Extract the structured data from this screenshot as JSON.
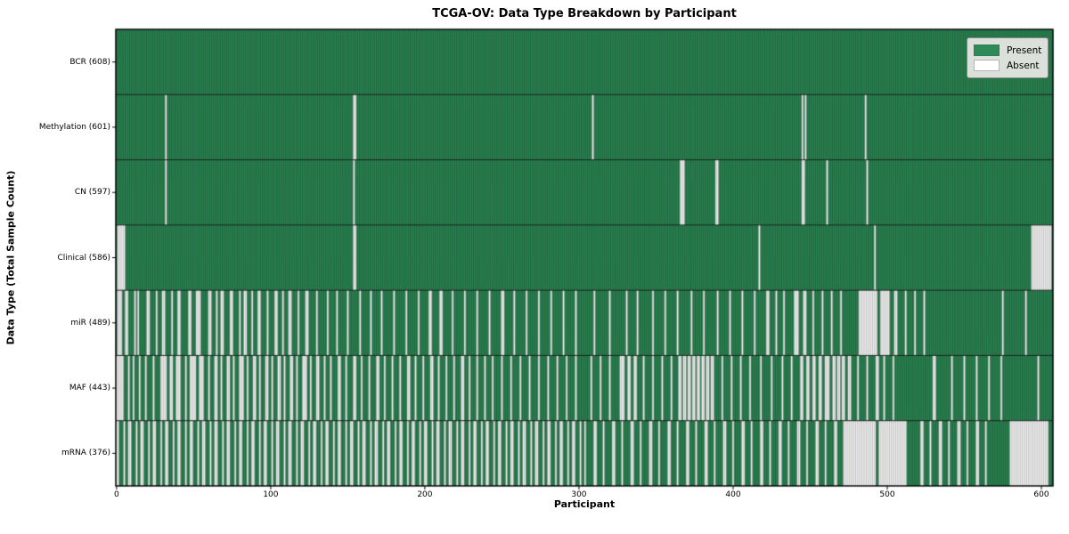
{
  "title": "TCGA-OV: Data Type Breakdown by Participant",
  "xlabel": "Participant",
  "ylabel": "Data Type (Total Sample Count)",
  "legend": {
    "present": "Present",
    "absent": "Absent"
  },
  "colors": {
    "present": "#2e8b57",
    "present_edge": "#0b3d22",
    "absent": "#ffffff",
    "absent_edge": "#9a9a9a",
    "grid_line": "#1a1a1a",
    "border": "#000000",
    "legend_bg": "#dbe0da",
    "text": "#000000"
  },
  "chart_data": {
    "type": "heatmap",
    "title": "TCGA-OV: Data Type Breakdown by Participant",
    "xlabel": "Participant",
    "ylabel": "Data Type (Total Sample Count)",
    "legend_entries": [
      "Present",
      "Absent"
    ],
    "legend_position": "upper right",
    "n_participants": 608,
    "x_ticks": [
      0,
      100,
      200,
      300,
      400,
      500,
      600
    ],
    "xlim": [
      -0.5,
      607.5
    ],
    "rows": [
      {
        "name": "BCR",
        "label": "BCR (608)",
        "present_count": 608,
        "absent_count": 0,
        "absent_runs": []
      },
      {
        "name": "Methylation",
        "label": "Methylation (601)",
        "present_count": 601,
        "absent_count": 7,
        "absent_runs": [
          [
            32,
            1
          ],
          [
            154,
            2
          ],
          [
            309,
            1
          ],
          [
            445,
            1
          ],
          [
            447,
            1
          ],
          [
            486,
            1
          ]
        ]
      },
      {
        "name": "CN",
        "label": "CN (597)",
        "present_count": 597,
        "absent_count": 11,
        "absent_runs": [
          [
            32,
            1
          ],
          [
            154,
            1
          ],
          [
            366,
            3
          ],
          [
            389,
            2
          ],
          [
            445,
            2
          ],
          [
            461,
            1
          ],
          [
            487,
            1
          ]
        ]
      },
      {
        "name": "Clinical",
        "label": "Clinical (586)",
        "present_count": 586,
        "absent_count": 22,
        "absent_runs": [
          [
            1,
            5
          ],
          [
            154,
            2
          ],
          [
            417,
            1
          ],
          [
            492,
            1
          ],
          [
            594,
            13
          ]
        ]
      },
      {
        "name": "miR",
        "label": "miR (489)",
        "present_count": 489,
        "absent_count": 119,
        "absent_runs": [
          [
            1,
            3
          ],
          [
            6,
            2
          ],
          [
            12,
            1
          ],
          [
            14,
            1
          ],
          [
            20,
            2
          ],
          [
            26,
            1
          ],
          [
            30,
            2
          ],
          [
            36,
            1
          ],
          [
            40,
            2
          ],
          [
            47,
            2
          ],
          [
            52,
            3
          ],
          [
            60,
            2
          ],
          [
            65,
            1
          ],
          [
            68,
            2
          ],
          [
            74,
            2
          ],
          [
            80,
            1
          ],
          [
            83,
            2
          ],
          [
            88,
            1
          ],
          [
            92,
            2
          ],
          [
            98,
            1
          ],
          [
            103,
            2
          ],
          [
            108,
            1
          ],
          [
            112,
            2
          ],
          [
            118,
            1
          ],
          [
            123,
            2
          ],
          [
            130,
            1
          ],
          [
            137,
            1
          ],
          [
            143,
            1
          ],
          [
            150,
            1
          ],
          [
            158,
            1
          ],
          [
            165,
            1
          ],
          [
            172,
            1
          ],
          [
            180,
            1
          ],
          [
            188,
            1
          ],
          [
            196,
            1
          ],
          [
            203,
            2
          ],
          [
            210,
            2
          ],
          [
            218,
            1
          ],
          [
            226,
            1
          ],
          [
            234,
            1
          ],
          [
            242,
            1
          ],
          [
            250,
            2
          ],
          [
            258,
            1
          ],
          [
            266,
            1
          ],
          [
            274,
            1
          ],
          [
            282,
            1
          ],
          [
            290,
            1
          ],
          [
            298,
            1
          ],
          [
            310,
            1
          ],
          [
            320,
            1
          ],
          [
            331,
            1
          ],
          [
            338,
            1
          ],
          [
            348,
            1
          ],
          [
            356,
            1
          ],
          [
            364,
            1
          ],
          [
            373,
            1
          ],
          [
            381,
            1
          ],
          [
            390,
            1
          ],
          [
            398,
            1
          ],
          [
            406,
            1
          ],
          [
            414,
            1
          ],
          [
            422,
            2
          ],
          [
            428,
            1
          ],
          [
            433,
            1
          ],
          [
            440,
            3
          ],
          [
            446,
            2
          ],
          [
            452,
            1
          ],
          [
            458,
            1
          ],
          [
            464,
            1
          ],
          [
            470,
            1
          ],
          [
            482,
            12
          ],
          [
            496,
            6
          ],
          [
            505,
            2
          ],
          [
            512,
            1
          ],
          [
            518,
            1
          ],
          [
            524,
            1
          ],
          [
            575,
            1
          ],
          [
            590,
            1
          ]
        ]
      },
      {
        "name": "MAF",
        "label": "MAF (443)",
        "present_count": 443,
        "absent_count": 165,
        "absent_runs": [
          [
            0,
            5
          ],
          [
            8,
            1
          ],
          [
            11,
            1
          ],
          [
            15,
            1
          ],
          [
            19,
            1
          ],
          [
            24,
            1
          ],
          [
            29,
            4
          ],
          [
            35,
            2
          ],
          [
            39,
            3
          ],
          [
            45,
            1
          ],
          [
            48,
            4
          ],
          [
            54,
            3
          ],
          [
            60,
            1
          ],
          [
            64,
            2
          ],
          [
            68,
            1
          ],
          [
            72,
            2
          ],
          [
            76,
            1
          ],
          [
            80,
            3
          ],
          [
            85,
            1
          ],
          [
            89,
            2
          ],
          [
            93,
            1
          ],
          [
            97,
            2
          ],
          [
            101,
            1
          ],
          [
            105,
            2
          ],
          [
            109,
            1
          ],
          [
            113,
            2
          ],
          [
            117,
            1
          ],
          [
            121,
            3
          ],
          [
            126,
            1
          ],
          [
            130,
            2
          ],
          [
            135,
            1
          ],
          [
            139,
            1
          ],
          [
            144,
            2
          ],
          [
            149,
            1
          ],
          [
            154,
            2
          ],
          [
            159,
            1
          ],
          [
            164,
            1
          ],
          [
            169,
            2
          ],
          [
            174,
            1
          ],
          [
            179,
            1
          ],
          [
            184,
            1
          ],
          [
            189,
            2
          ],
          [
            194,
            1
          ],
          [
            199,
            1
          ],
          [
            204,
            2
          ],
          [
            209,
            1
          ],
          [
            214,
            1
          ],
          [
            219,
            1
          ],
          [
            224,
            2
          ],
          [
            229,
            1
          ],
          [
            234,
            1
          ],
          [
            239,
            1
          ],
          [
            244,
            1
          ],
          [
            250,
            1
          ],
          [
            256,
            1
          ],
          [
            262,
            1
          ],
          [
            268,
            1
          ],
          [
            274,
            1
          ],
          [
            280,
            1
          ],
          [
            286,
            1
          ],
          [
            292,
            1
          ],
          [
            298,
            1
          ],
          [
            308,
            1
          ],
          [
            314,
            1
          ],
          [
            320,
            1
          ],
          [
            327,
            3
          ],
          [
            332,
            2
          ],
          [
            336,
            2
          ],
          [
            342,
            1
          ],
          [
            348,
            1
          ],
          [
            354,
            1
          ],
          [
            360,
            1
          ],
          [
            365,
            2
          ],
          [
            368,
            2
          ],
          [
            371,
            2
          ],
          [
            374,
            2
          ],
          [
            377,
            2
          ],
          [
            380,
            2
          ],
          [
            383,
            2
          ],
          [
            386,
            2
          ],
          [
            393,
            1
          ],
          [
            399,
            1
          ],
          [
            405,
            1
          ],
          [
            411,
            1
          ],
          [
            418,
            1
          ],
          [
            425,
            1
          ],
          [
            432,
            1
          ],
          [
            438,
            1
          ],
          [
            444,
            2
          ],
          [
            448,
            2
          ],
          [
            452,
            2
          ],
          [
            456,
            2
          ],
          [
            460,
            3
          ],
          [
            465,
            2
          ],
          [
            468,
            2
          ],
          [
            471,
            2
          ],
          [
            475,
            2
          ],
          [
            481,
            1
          ],
          [
            487,
            1
          ],
          [
            493,
            2
          ],
          [
            498,
            1
          ],
          [
            504,
            1
          ],
          [
            530,
            2
          ],
          [
            542,
            1
          ],
          [
            550,
            1
          ],
          [
            558,
            1
          ],
          [
            566,
            1
          ],
          [
            574,
            1
          ],
          [
            598,
            1
          ]
        ]
      },
      {
        "name": "mRNA",
        "label": "mRNA (376)",
        "present_count": 376,
        "absent_count": 232,
        "absent_runs": [
          [
            0,
            2
          ],
          [
            5,
            1
          ],
          [
            8,
            2
          ],
          [
            13,
            1
          ],
          [
            16,
            2
          ],
          [
            21,
            1
          ],
          [
            24,
            2
          ],
          [
            29,
            1
          ],
          [
            32,
            2
          ],
          [
            37,
            1
          ],
          [
            40,
            2
          ],
          [
            45,
            1
          ],
          [
            48,
            2
          ],
          [
            53,
            1
          ],
          [
            56,
            2
          ],
          [
            61,
            1
          ],
          [
            64,
            2
          ],
          [
            69,
            1
          ],
          [
            72,
            2
          ],
          [
            77,
            1
          ],
          [
            80,
            2
          ],
          [
            85,
            1
          ],
          [
            88,
            2
          ],
          [
            93,
            1
          ],
          [
            96,
            2
          ],
          [
            101,
            1
          ],
          [
            104,
            2
          ],
          [
            109,
            1
          ],
          [
            112,
            2
          ],
          [
            117,
            1
          ],
          [
            120,
            2
          ],
          [
            125,
            1
          ],
          [
            128,
            2
          ],
          [
            133,
            1
          ],
          [
            136,
            2
          ],
          [
            141,
            1
          ],
          [
            144,
            2
          ],
          [
            149,
            1
          ],
          [
            152,
            2
          ],
          [
            157,
            1
          ],
          [
            160,
            2
          ],
          [
            165,
            1
          ],
          [
            168,
            2
          ],
          [
            173,
            1
          ],
          [
            176,
            2
          ],
          [
            181,
            1
          ],
          [
            184,
            2
          ],
          [
            189,
            1
          ],
          [
            192,
            2
          ],
          [
            197,
            1
          ],
          [
            200,
            2
          ],
          [
            205,
            1
          ],
          [
            208,
            2
          ],
          [
            213,
            1
          ],
          [
            216,
            2
          ],
          [
            221,
            1
          ],
          [
            224,
            2
          ],
          [
            229,
            1
          ],
          [
            232,
            2
          ],
          [
            237,
            1
          ],
          [
            240,
            2
          ],
          [
            245,
            1
          ],
          [
            248,
            2
          ],
          [
            253,
            1
          ],
          [
            256,
            2
          ],
          [
            261,
            1
          ],
          [
            264,
            2
          ],
          [
            269,
            1
          ],
          [
            272,
            2
          ],
          [
            277,
            1
          ],
          [
            280,
            2
          ],
          [
            285,
            1
          ],
          [
            288,
            2
          ],
          [
            293,
            1
          ],
          [
            296,
            2
          ],
          [
            301,
            1
          ],
          [
            304,
            1
          ],
          [
            310,
            2
          ],
          [
            316,
            1
          ],
          [
            322,
            2
          ],
          [
            328,
            1
          ],
          [
            334,
            2
          ],
          [
            340,
            1
          ],
          [
            346,
            2
          ],
          [
            352,
            1
          ],
          [
            358,
            2
          ],
          [
            364,
            1
          ],
          [
            370,
            2
          ],
          [
            376,
            1
          ],
          [
            382,
            2
          ],
          [
            388,
            1
          ],
          [
            394,
            2
          ],
          [
            400,
            1
          ],
          [
            406,
            2
          ],
          [
            412,
            1
          ],
          [
            418,
            2
          ],
          [
            424,
            1
          ],
          [
            430,
            2
          ],
          [
            436,
            1
          ],
          [
            442,
            2
          ],
          [
            448,
            1
          ],
          [
            454,
            2
          ],
          [
            460,
            1
          ],
          [
            466,
            2
          ],
          [
            472,
            21
          ],
          [
            495,
            18
          ],
          [
            522,
            2
          ],
          [
            528,
            1
          ],
          [
            534,
            2
          ],
          [
            540,
            1
          ],
          [
            546,
            2
          ],
          [
            552,
            1
          ],
          [
            558,
            2
          ],
          [
            564,
            1
          ],
          [
            580,
            25
          ]
        ]
      }
    ]
  }
}
